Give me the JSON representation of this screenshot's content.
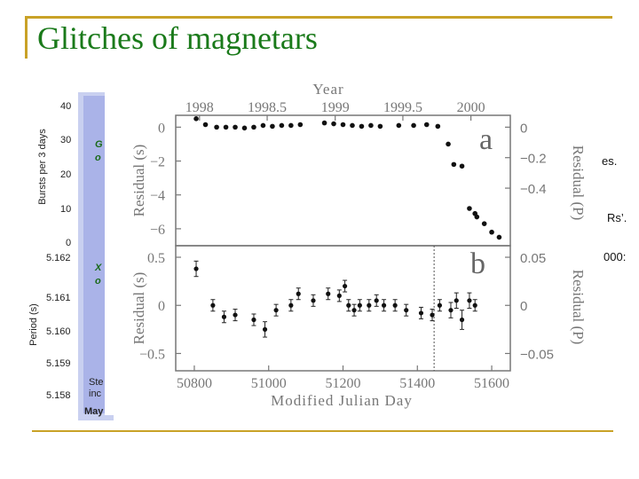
{
  "slide": {
    "title": "Glitches of magnetars"
  },
  "background_fig": {
    "ylabel_top": "Bursts per 3 days",
    "ylabel_bottom": "Period (s)",
    "top_ticks": [
      "40",
      "30",
      "20",
      "10",
      "0"
    ],
    "bottom_ticks": [
      "5.162",
      "5.161",
      "5.160",
      "5.159",
      "5.158"
    ],
    "label_g": "G",
    "label_o1": "o",
    "label_x": "X",
    "label_o2": "o",
    "label_ste": "Ste",
    "label_inc": "inc",
    "label_may": "May"
  },
  "side_text": [
    "es.",
    "Rs’.",
    "000:"
  ],
  "chart_data": [
    {
      "type": "scatter",
      "panel": "a",
      "title": "Year",
      "top_axis_ticks": [
        "1998",
        "1998.5",
        "1999",
        "1999.5",
        "2000"
      ],
      "top_axis_positions_mjd": [
        50814,
        50996,
        51179,
        51361,
        51544
      ],
      "xlim": [
        50750,
        51650
      ],
      "ylim": [
        -7,
        0.7
      ],
      "ylabel": "Residual (s)",
      "y_ticks": [
        0,
        -2,
        -4,
        -6
      ],
      "right_ylabel": "Residual (P)",
      "right_ticks": [
        "0",
        "-0.2",
        "-0.4"
      ],
      "right_tick_values": [
        0,
        -1.8,
        -3.6
      ],
      "x": [
        50805,
        50830,
        50860,
        50885,
        50910,
        50935,
        50960,
        50985,
        51010,
        51035,
        51060,
        51085,
        51150,
        51175,
        51200,
        51225,
        51250,
        51275,
        51300,
        51350,
        51390,
        51425,
        51455,
        51483,
        51498,
        51520,
        51540,
        51555,
        51560,
        51580,
        51600,
        51620
      ],
      "y": [
        0.5,
        0.15,
        0,
        0,
        0,
        -0.05,
        0,
        0.1,
        0.05,
        0.1,
        0.1,
        0.15,
        0.25,
        0.2,
        0.15,
        0.1,
        0.05,
        0.1,
        0.05,
        0.1,
        0.1,
        0.15,
        0.05,
        -1.0,
        -2.2,
        -2.3,
        -4.8,
        -5.1,
        -5.3,
        -5.7,
        -6.2,
        -6.5
      ]
    },
    {
      "type": "scatter",
      "panel": "b",
      "xlabel": "Modified Julian Day",
      "x_ticks": [
        50800,
        51000,
        51200,
        51400,
        51600
      ],
      "xlim": [
        50750,
        51650
      ],
      "ylim": [
        -0.68,
        0.62
      ],
      "ylabel": "Residual (s)",
      "y_ticks": [
        0.5,
        0,
        -0.5
      ],
      "right_ylabel": "Residual (P)",
      "right_ticks": [
        "0.05",
        "0",
        "-0.05"
      ],
      "right_tick_values": [
        0.5,
        0,
        -0.5
      ],
      "glitch_marker_mjd": 51445,
      "x": [
        50805,
        50850,
        50880,
        50910,
        50960,
        50990,
        51020,
        51060,
        51080,
        51120,
        51160,
        51190,
        51205,
        51215,
        51230,
        51245,
        51270,
        51290,
        51310,
        51340,
        51370,
        51410,
        51440,
        51460,
        51490,
        51505,
        51520,
        51540,
        51555
      ],
      "y": [
        0.38,
        0.0,
        -0.12,
        -0.1,
        -0.15,
        -0.25,
        -0.05,
        0.0,
        0.12,
        0.05,
        0.12,
        0.1,
        0.2,
        0.0,
        -0.05,
        0.0,
        0.0,
        0.05,
        0.0,
        0.0,
        -0.05,
        -0.08,
        -0.1,
        0.0,
        -0.05,
        0.05,
        -0.15,
        0.05,
        0.0
      ],
      "err": [
        0.08,
        0.06,
        0.06,
        0.06,
        0.06,
        0.08,
        0.06,
        0.06,
        0.06,
        0.06,
        0.06,
        0.06,
        0.06,
        0.06,
        0.06,
        0.06,
        0.06,
        0.06,
        0.06,
        0.06,
        0.06,
        0.06,
        0.06,
        0.06,
        0.08,
        0.08,
        0.1,
        0.08,
        0.06
      ]
    }
  ]
}
